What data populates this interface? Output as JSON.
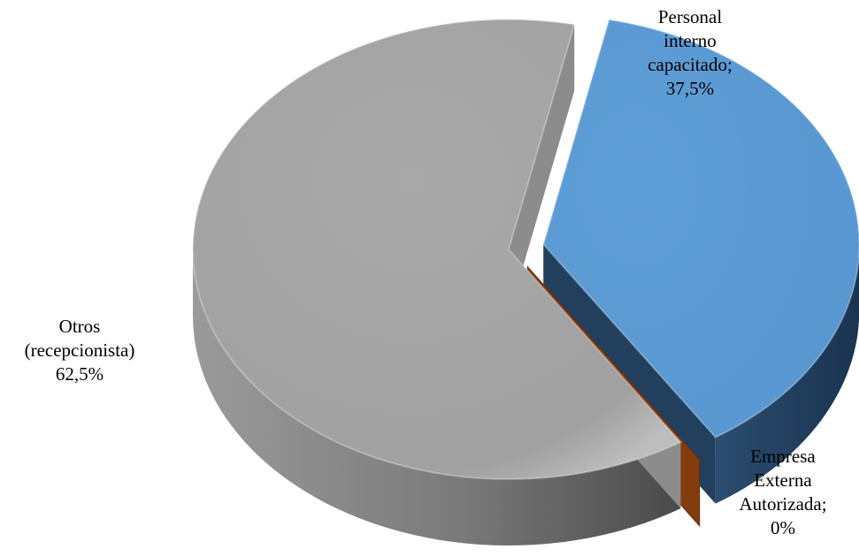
{
  "chart_data": {
    "type": "pie",
    "variant": "3d-exploded",
    "legend": "none",
    "slices": [
      {
        "key": "personal",
        "label_lines": [
          "Personal",
          "interno",
          "capacitado;",
          "37,5%"
        ],
        "value": 37.5,
        "color": "#5b9bd5",
        "side_color": "#22405e"
      },
      {
        "key": "empresa",
        "label_lines": [
          "Empresa",
          "Externa",
          "Autorizada;",
          "0%"
        ],
        "value": 0,
        "color": "#843c0c",
        "side_color": "#5e2e10"
      },
      {
        "key": "otros",
        "label_lines": [
          "Otros",
          "(recepcionista)",
          "62,5%"
        ],
        "value": 62.5,
        "color": "#a5a5a5",
        "side_color": "#6e6e6e"
      }
    ]
  }
}
